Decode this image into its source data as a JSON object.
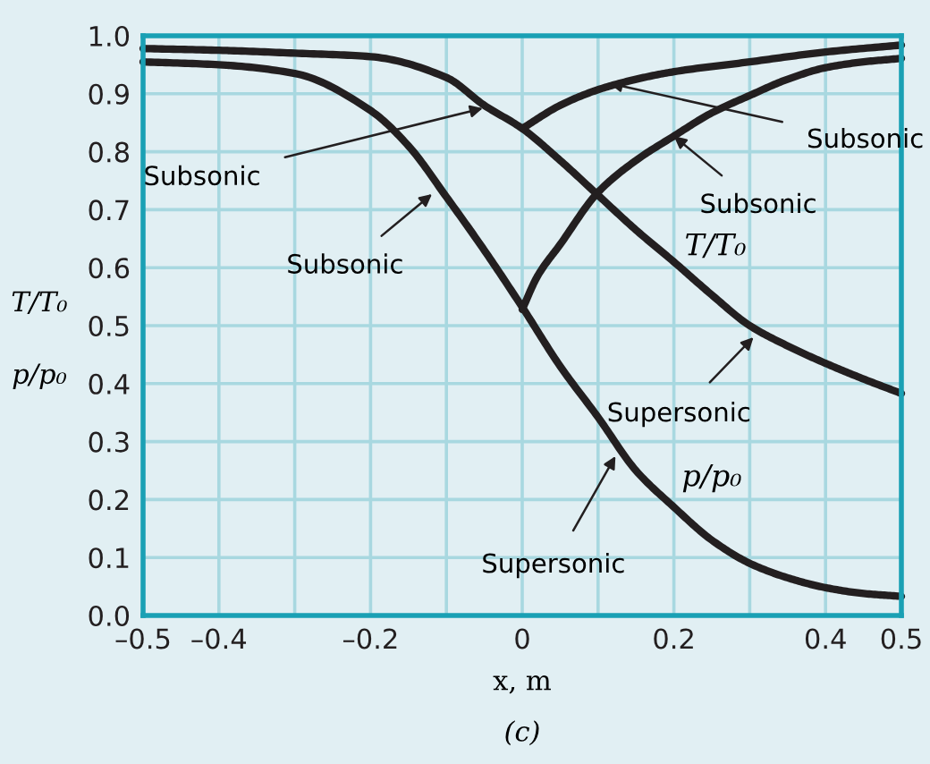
{
  "chart_data": {
    "type": "line",
    "xlabel": "x, m",
    "ylabel": "T/T₀\np/p₀",
    "xlim": [
      -0.5,
      0.5
    ],
    "ylim": [
      0,
      1.0
    ],
    "xticks": [
      {
        "value": -0.5,
        "label": "–0.5"
      },
      {
        "value": -0.4,
        "label": "–0.4"
      },
      {
        "value": -0.3,
        "label": null
      },
      {
        "value": -0.2,
        "label": "–0.2"
      },
      {
        "value": -0.1,
        "label": null
      },
      {
        "value": 0,
        "label": "0"
      },
      {
        "value": 0.1,
        "label": null
      },
      0.2,
      {
        "value": 0.3,
        "label": null
      },
      0.4,
      0.5
    ],
    "yticks": [
      {
        "value": 0,
        "label": "0.0"
      },
      0.1,
      0.2,
      0.3,
      0.4,
      0.5,
      0.6,
      0.7,
      0.8,
      0.9,
      {
        "value": 1,
        "label": "1.0"
      }
    ],
    "grid": true,
    "legend": false,
    "marker": "none",
    "line_style": "solid",
    "series": [
      {
        "color": "#231f20",
        "x": [
          -0.5,
          -0.4,
          -0.3,
          -0.2,
          -0.1,
          -0.05,
          0,
          0.05,
          0.1,
          0.15,
          0.2,
          0.25,
          0.3,
          0.35,
          0.4,
          0.45,
          0.5
        ],
        "values": [
          0.978,
          0.975,
          0.97,
          0.964,
          0.928,
          0.88,
          0.84,
          0.785,
          0.725,
          0.665,
          0.61,
          0.553,
          0.5,
          0.465,
          0.435,
          0.408,
          0.383
        ]
      },
      {
        "color": "#231f20",
        "x": [
          -0.5,
          -0.4,
          -0.3,
          -0.2,
          -0.15,
          -0.1,
          -0.05,
          0,
          0.05,
          0.1,
          0.15,
          0.2,
          0.25,
          0.3,
          0.35,
          0.4,
          0.45,
          0.5
        ],
        "values": [
          0.955,
          0.95,
          0.935,
          0.871,
          0.81,
          0.722,
          0.63,
          0.532,
          0.43,
          0.342,
          0.25,
          0.187,
          0.13,
          0.09,
          0.065,
          0.048,
          0.038,
          0.033
        ]
      },
      {
        "color": "#231f20",
        "x": [
          0,
          0.05,
          0.1,
          0.15,
          0.2,
          0.3,
          0.4,
          0.5
        ],
        "values": [
          0.84,
          0.88,
          0.907,
          0.925,
          0.938,
          0.955,
          0.972,
          0.984
        ]
      },
      {
        "color": "#231f20",
        "x": [
          0,
          0.02,
          0.05,
          0.1,
          0.15,
          0.2,
          0.25,
          0.3,
          0.35,
          0.4,
          0.45,
          0.5
        ],
        "values": [
          0.528,
          0.585,
          0.64,
          0.73,
          0.785,
          0.827,
          0.867,
          0.897,
          0.925,
          0.945,
          0.955,
          0.961
        ]
      }
    ],
    "annotations": [
      {
        "text": "Subsonic",
        "x": -0.052,
        "y": 0.875
      },
      {
        "text": "Subsonic",
        "x": -0.119,
        "y": 0.727
      },
      {
        "text": "Subsonic",
        "x": 0.115,
        "y": 0.918
      },
      {
        "text": "Subsonic",
        "x": 0.2,
        "y": 0.827
      },
      {
        "text": "Supersonic",
        "x": 0.305,
        "y": 0.48
      },
      {
        "text": "Supersonic",
        "x": 0.123,
        "y": 0.275
      },
      "T/T₀",
      "p/p₀",
      "(c)"
    ]
  }
}
